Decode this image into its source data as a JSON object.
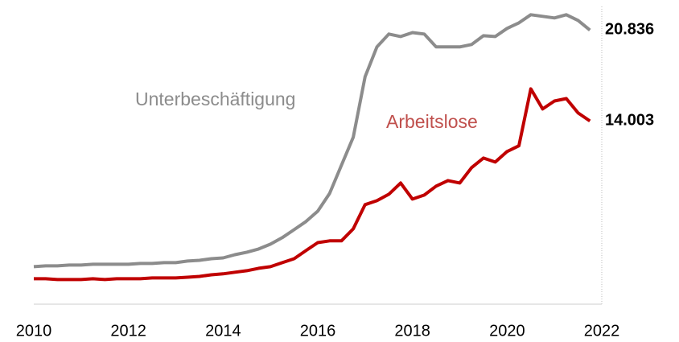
{
  "chart_data": {
    "type": "line",
    "x": [
      2010,
      2010.25,
      2010.5,
      2010.75,
      2011,
      2011.25,
      2011.5,
      2011.75,
      2012,
      2012.25,
      2012.5,
      2012.75,
      2013,
      2013.25,
      2013.5,
      2013.75,
      2014,
      2014.25,
      2014.5,
      2014.75,
      2015,
      2015.25,
      2015.5,
      2015.75,
      2016,
      2016.25,
      2016.5,
      2016.75,
      2017,
      2017.25,
      2017.5,
      2017.75,
      2018,
      2018.25,
      2018.5,
      2018.75,
      2019,
      2019.25,
      2019.5,
      2019.75,
      2020,
      2020.25,
      2020.5,
      2020.75,
      2021,
      2021.25,
      2021.5,
      2021.75
    ],
    "series": [
      {
        "name": "Unterbeschäftigung",
        "color": "#8c8c8c",
        "label_color": "#8c8c8c",
        "end_label": "20.836",
        "values": [
          3060,
          3120,
          3120,
          3180,
          3180,
          3240,
          3240,
          3240,
          3240,
          3300,
          3300,
          3360,
          3360,
          3480,
          3540,
          3660,
          3720,
          3960,
          4150,
          4390,
          4750,
          5240,
          5840,
          6450,
          7230,
          8560,
          10680,
          12790,
          17330,
          19570,
          20540,
          20350,
          20650,
          20540,
          19570,
          19570,
          19570,
          19750,
          20410,
          20350,
          20960,
          21380,
          21990,
          21870,
          21750,
          21990,
          21560,
          20836
        ]
      },
      {
        "name": "Arbeitslose",
        "color": "#c00000",
        "label_color": "#c0504d",
        "end_label": "14.003",
        "values": [
          2150,
          2150,
          2090,
          2090,
          2090,
          2150,
          2090,
          2150,
          2150,
          2150,
          2210,
          2210,
          2210,
          2270,
          2330,
          2450,
          2520,
          2640,
          2760,
          2940,
          3060,
          3360,
          3660,
          4270,
          4870,
          5000,
          5000,
          5900,
          7720,
          8020,
          8500,
          9350,
          8140,
          8440,
          9110,
          9530,
          9350,
          10500,
          11220,
          10920,
          11710,
          12140,
          16420,
          14910,
          15510,
          15690,
          14610,
          14003
        ]
      }
    ],
    "xlim": [
      2010,
      2022
    ],
    "xticks": [
      2010,
      2012,
      2014,
      2016,
      2018,
      2020,
      2022
    ],
    "ylim": [
      0,
      22250
    ]
  }
}
